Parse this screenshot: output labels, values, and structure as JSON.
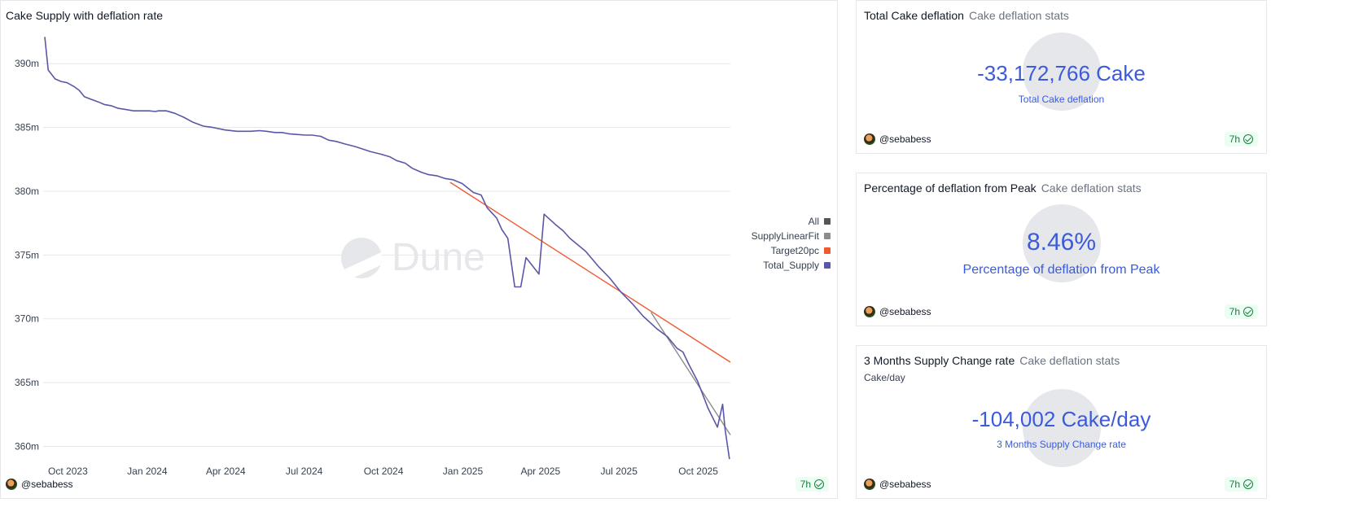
{
  "chart_panel": {
    "title": "Cake Supply with deflation rate",
    "author": "@sebabess",
    "age": "7h",
    "watermark": "Dune"
  },
  "chart_data": {
    "type": "line",
    "title": "Cake Supply with deflation rate",
    "y_ticks": [
      "390m",
      "385m",
      "380m",
      "375m",
      "370m",
      "365m",
      "360m"
    ],
    "y_tick_values": [
      390,
      385,
      380,
      375,
      370,
      365,
      360
    ],
    "ylim": [
      359.2,
      392.5
    ],
    "x_ticks": [
      "Oct 2023",
      "Jan 2024",
      "Apr 2024",
      "Jul 2024",
      "Oct 2024",
      "Jan 2025",
      "Apr 2025",
      "Jul 2025",
      "Oct 2025"
    ],
    "x_tick_dates": [
      "2023-10-01",
      "2024-01-01",
      "2024-04-01",
      "2024-07-01",
      "2024-10-01",
      "2025-01-01",
      "2025-04-01",
      "2025-07-01",
      "2025-10-01"
    ],
    "xlim": [
      "2023-09-24",
      "2025-11-27"
    ],
    "grid": true,
    "legend_position": "right",
    "legend": [
      {
        "name": "All",
        "color": "#555555"
      },
      {
        "name": "SupplyLinearFit",
        "color": "#8c8c8c"
      },
      {
        "name": "Target20pc",
        "color": "#ef5a34"
      },
      {
        "name": "Total_Supply",
        "color": "#5a58a6"
      }
    ],
    "series": [
      {
        "name": "Total_Supply",
        "color": "#5a58a6",
        "points": [
          [
            "2023-09-24",
            392.1
          ],
          [
            "2023-09-28",
            389.5
          ],
          [
            "2023-10-06",
            388.8
          ],
          [
            "2023-10-13",
            388.6
          ],
          [
            "2023-10-20",
            388.5
          ],
          [
            "2023-10-28",
            388.2
          ],
          [
            "2023-11-03",
            387.9
          ],
          [
            "2023-11-09",
            387.4
          ],
          [
            "2023-11-17",
            387.2
          ],
          [
            "2023-11-25",
            387.0
          ],
          [
            "2023-12-02",
            386.8
          ],
          [
            "2023-12-10",
            386.7
          ],
          [
            "2023-12-18",
            386.5
          ],
          [
            "2023-12-27",
            386.4
          ],
          [
            "2024-01-05",
            386.3
          ],
          [
            "2024-01-14",
            386.3
          ],
          [
            "2024-01-23",
            386.3
          ],
          [
            "2024-01-30",
            386.25
          ],
          [
            "2024-02-03",
            386.3
          ],
          [
            "2024-02-12",
            386.3
          ],
          [
            "2024-02-22",
            386.1
          ],
          [
            "2024-03-03",
            385.8
          ],
          [
            "2024-03-14",
            385.4
          ],
          [
            "2024-03-26",
            385.1
          ],
          [
            "2024-04-06",
            385.0
          ],
          [
            "2024-04-20",
            384.8
          ],
          [
            "2024-05-04",
            384.7
          ],
          [
            "2024-05-20",
            384.7
          ],
          [
            "2024-05-30",
            384.75
          ],
          [
            "2024-06-07",
            384.7
          ],
          [
            "2024-06-17",
            384.6
          ],
          [
            "2024-06-25",
            384.6
          ],
          [
            "2024-07-03",
            384.5
          ],
          [
            "2024-07-12",
            384.45
          ],
          [
            "2024-07-22",
            384.4
          ],
          [
            "2024-07-30",
            384.4
          ],
          [
            "2024-08-09",
            384.3
          ],
          [
            "2024-08-18",
            384.0
          ],
          [
            "2024-08-27",
            383.9
          ],
          [
            "2024-09-06",
            383.7
          ],
          [
            "2024-09-18",
            383.5
          ],
          [
            "2024-09-27",
            383.3
          ],
          [
            "2024-10-06",
            383.1
          ],
          [
            "2024-10-18",
            382.9
          ],
          [
            "2024-10-28",
            382.7
          ],
          [
            "2024-11-05",
            382.4
          ],
          [
            "2024-11-15",
            382.2
          ],
          [
            "2024-11-23",
            381.8
          ],
          [
            "2024-12-03",
            381.5
          ],
          [
            "2024-12-12",
            381.3
          ],
          [
            "2024-12-22",
            381.2
          ],
          [
            "2024-12-31",
            381.0
          ],
          [
            "2025-01-09",
            380.9
          ],
          [
            "2025-01-20",
            380.6
          ],
          [
            "2025-02-02",
            379.9
          ],
          [
            "2025-02-11",
            379.7
          ],
          [
            "2025-02-18",
            378.7
          ],
          [
            "2025-03-01",
            377.9
          ],
          [
            "2025-03-07",
            377.0
          ],
          [
            "2025-03-14",
            376.3
          ],
          [
            "2025-03-22",
            372.5
          ],
          [
            "2025-03-29",
            372.5
          ],
          [
            "2025-04-04",
            374.8
          ],
          [
            "2025-04-19",
            373.5
          ],
          [
            "2025-04-25",
            378.2
          ],
          [
            "2025-05-08",
            377.4
          ],
          [
            "2025-05-17",
            376.9
          ],
          [
            "2025-05-25",
            376.3
          ],
          [
            "2025-06-12",
            375.3
          ],
          [
            "2025-06-27",
            374.1
          ],
          [
            "2025-07-10",
            373.2
          ],
          [
            "2025-07-23",
            372.1
          ],
          [
            "2025-08-05",
            371.2
          ],
          [
            "2025-08-18",
            370.2
          ],
          [
            "2025-09-03",
            369.2
          ],
          [
            "2025-09-15",
            368.6
          ],
          [
            "2025-09-26",
            367.7
          ],
          [
            "2025-10-03",
            367.4
          ],
          [
            "2025-10-10",
            366.4
          ],
          [
            "2025-10-20",
            365.1
          ],
          [
            "2025-11-01",
            363.0
          ],
          [
            "2025-11-12",
            361.5
          ],
          [
            "2025-11-18",
            363.3
          ],
          [
            "2025-11-21",
            361.3
          ],
          [
            "2025-11-26",
            359.0
          ]
        ]
      },
      {
        "name": "Target20pc",
        "color": "#ef5a34",
        "points": [
          [
            "2025-01-06",
            380.7
          ],
          [
            "2025-11-27",
            366.6
          ]
        ]
      },
      {
        "name": "SupplyLinearFit",
        "color": "#8c8c8c",
        "points": [
          [
            "2025-08-27",
            370.5
          ],
          [
            "2025-11-27",
            360.9
          ]
        ]
      }
    ]
  },
  "counters": [
    {
      "title": "Total Cake deflation",
      "subtitle": "Cake deflation stats",
      "unit_label": "",
      "value": "-33,172,766 Cake",
      "caption": "Total Cake deflation",
      "author": "@sebabess",
      "age": "7h"
    },
    {
      "title": "Percentage of deflation from Peak",
      "subtitle": "Cake deflation stats",
      "unit_label": "",
      "value": "8.46%",
      "caption": "Percentage of deflation from Peak",
      "author": "@sebabess",
      "age": "7h"
    },
    {
      "title": "3 Months Supply Change rate",
      "subtitle": "Cake deflation stats",
      "unit_label": "Cake/day",
      "value": "-104,002 Cake/day",
      "caption": "3 Months Supply Change rate",
      "author": "@sebabess",
      "age": "7h"
    }
  ]
}
